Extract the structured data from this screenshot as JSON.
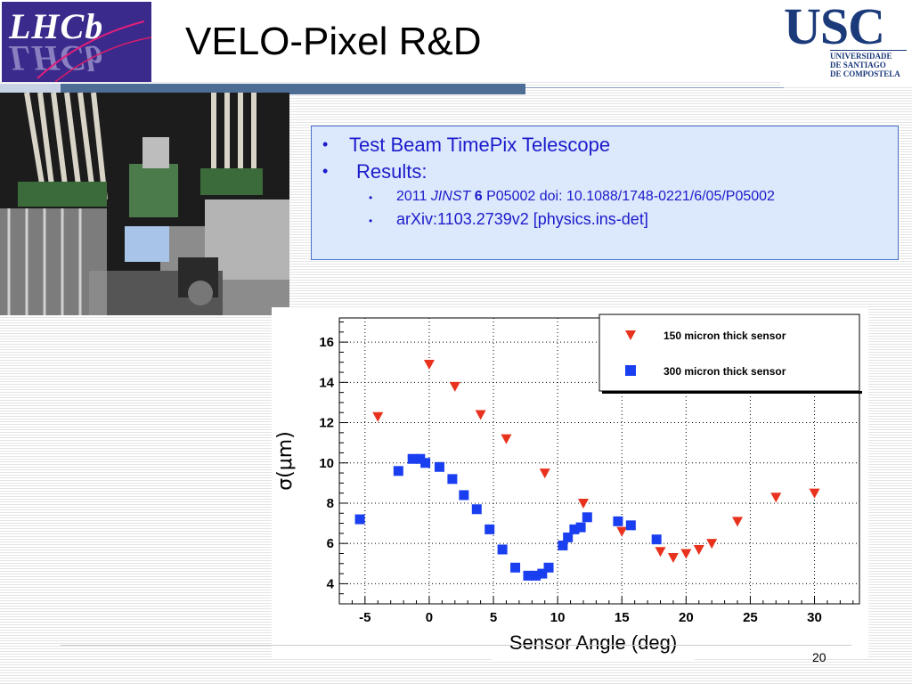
{
  "slide": {
    "title": "VELO-Pixel R&D",
    "page_number": "20"
  },
  "logos": {
    "lhcb": "LHCb",
    "usc_abbr": "USC",
    "usc_line1": "UNIVERSIDADE",
    "usc_line2": "DE SANTIAGO",
    "usc_line3": "DE COMPOSTELA"
  },
  "textbox": {
    "b1": "Test Beam TimePix Telescope",
    "b2": "Results:",
    "sub1_year": "2011 ",
    "sub1_journal": "JINST",
    "sub1_vol": " 6",
    "sub1_rest": " P05002 doi: 10.1088/1748-0221/6/05/P05002",
    "sub2": "arXiv:1103.2739v2 [physics.ins-det]"
  },
  "chart_data": {
    "type": "scatter",
    "xlabel": "Sensor Angle (deg)",
    "ylabel": "σ(μm)",
    "xlim": [
      -7,
      33.5
    ],
    "ylim": [
      3,
      17.2
    ],
    "xticks": [
      -5,
      0,
      5,
      10,
      15,
      20,
      25,
      30
    ],
    "yticks": [
      4,
      6,
      8,
      10,
      12,
      14,
      16
    ],
    "grid": true,
    "legend_position": "top-right",
    "series": [
      {
        "name": "150 micron thick sensor",
        "marker": "triangle-down",
        "color": "#e8321e",
        "x": [
          -4,
          0,
          2,
          4,
          6,
          9,
          12,
          15,
          18,
          19,
          20,
          21,
          22,
          24,
          27,
          30
        ],
        "y": [
          12.3,
          14.9,
          13.8,
          12.4,
          11.2,
          9.5,
          8.0,
          6.6,
          5.6,
          5.3,
          5.5,
          5.7,
          6.0,
          7.1,
          8.3,
          8.5
        ]
      },
      {
        "name": "300 micron thick sensor",
        "marker": "square",
        "color": "#1a3ff0",
        "x": [
          -5.4,
          -2.4,
          -1.3,
          -0.7,
          -0.3,
          0.8,
          1.8,
          2.7,
          3.7,
          4.7,
          5.7,
          6.7,
          7.7,
          8.3,
          8.8,
          9.3,
          10.4,
          10.8,
          11.3,
          11.8,
          12.3,
          14.7,
          15.7,
          17.7
        ],
        "y": [
          7.2,
          9.6,
          10.2,
          10.2,
          10.0,
          9.8,
          9.2,
          8.4,
          7.7,
          6.7,
          5.7,
          4.8,
          4.4,
          4.4,
          4.5,
          4.8,
          5.9,
          6.3,
          6.7,
          6.8,
          7.3,
          7.1,
          6.9,
          6.2
        ]
      }
    ]
  }
}
